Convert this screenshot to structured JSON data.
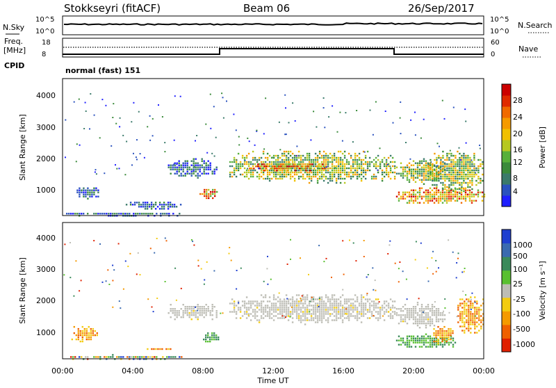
{
  "header": {
    "station": "Stokkseyri (fitACF)",
    "beam": "Beam 06",
    "date": "26/Sep/2017"
  },
  "noise_panel": {
    "left_label": "N.Sky",
    "left_ticks": [
      "10^5",
      "10^0"
    ],
    "right_label": "N.Search",
    "right_ticks": [
      "10^5",
      "10^0"
    ]
  },
  "freq_panel": {
    "left_label_1": "Freq.",
    "left_label_2": "[MHz]",
    "left_ticks": [
      "18",
      "8"
    ],
    "right_label": "Nave",
    "right_ticks": [
      "60",
      "0"
    ]
  },
  "cpid": {
    "label": "CPID",
    "value": "normal (fast) 151"
  },
  "colors": {
    "ground_grey": "#bdbdb5",
    "frame": "#000000"
  },
  "chart_data": [
    {
      "type": "heatmap",
      "title": "Power",
      "ylabel": "Slant Range [km]",
      "yticks": [
        "1000",
        "2000",
        "3000",
        "4000"
      ],
      "ylim": [
        200,
        4500
      ],
      "xlim": [
        0,
        24
      ],
      "colorbar": {
        "label": "Power [dB]",
        "ticks": [
          "4",
          "8",
          "12",
          "16",
          "20",
          "24",
          "28"
        ],
        "colors": [
          "#1f1fff",
          "#2a52be",
          "#3a7a6a",
          "#3a8a3a",
          "#57b03a",
          "#b6c820",
          "#f0c000",
          "#f59a00",
          "#f06a00",
          "#e02a00",
          "#cc0000"
        ]
      },
      "echo_regions": [
        {
          "t": [
            0.2,
            6.9
          ],
          "r": [
            200,
            350
          ],
          "level": "low"
        },
        {
          "t": [
            0.8,
            2.0
          ],
          "r": [
            750,
            1150
          ],
          "level": "low"
        },
        {
          "t": [
            3.6,
            6.8
          ],
          "r": [
            420,
            700
          ],
          "level": "low"
        },
        {
          "t": [
            6.0,
            8.8
          ],
          "r": [
            1400,
            2000
          ],
          "level": "low"
        },
        {
          "t": [
            7.8,
            8.8
          ],
          "r": [
            700,
            1100
          ],
          "level": "high"
        },
        {
          "t": [
            9.5,
            18.9
          ],
          "r": [
            1200,
            2300
          ],
          "level": "mid"
        },
        {
          "t": [
            10.5,
            15.0
          ],
          "r": [
            1600,
            1900
          ],
          "level": "high"
        },
        {
          "t": [
            19.0,
            21.8
          ],
          "r": [
            1200,
            2000
          ],
          "level": "mid"
        },
        {
          "t": [
            19.0,
            24.0
          ],
          "r": [
            550,
            1150
          ],
          "level": "high"
        },
        {
          "t": [
            20.8,
            24.0
          ],
          "r": [
            900,
            2300
          ],
          "level": "mid"
        }
      ]
    },
    {
      "type": "heatmap",
      "title": "Velocity",
      "ylabel": "Slant Range [km]",
      "xlabel": "Time UT",
      "yticks": [
        "1000",
        "2000",
        "3000",
        "4000"
      ],
      "ylim": [
        200,
        4500
      ],
      "xlim": [
        0,
        24
      ],
      "xticks": [
        "00:00",
        "04:00",
        "08:00",
        "12:00",
        "16:00",
        "20:00",
        "00:00"
      ],
      "colorbar": {
        "label": "Velocity [m s⁻¹]",
        "ticks": [
          "1000",
          "500",
          "100",
          "25",
          "-25",
          "-100",
          "-500",
          "-1000"
        ],
        "colors": [
          "#1f3fd0",
          "#3a6ab0",
          "#3a8a5a",
          "#59c030",
          "#bdbdb5",
          "#f3cc10",
          "#f59a00",
          "#f06000",
          "#e02000"
        ]
      },
      "echo_regions": [
        {
          "t": [
            0.2,
            6.9
          ],
          "r": [
            200,
            350
          ],
          "v": "mixed"
        },
        {
          "t": [
            0.5,
            2.0
          ],
          "r": [
            700,
            1300
          ],
          "v": "negative"
        },
        {
          "t": [
            4.8,
            6.2
          ],
          "r": [
            480,
            600
          ],
          "v": "negative"
        },
        {
          "t": [
            6.0,
            8.8
          ],
          "r": [
            1400,
            2000
          ],
          "v": "ground"
        },
        {
          "t": [
            8.0,
            8.9
          ],
          "r": [
            700,
            1100
          ],
          "v": "positive"
        },
        {
          "t": [
            9.5,
            18.9
          ],
          "r": [
            1300,
            2300
          ],
          "v": "ground"
        },
        {
          "t": [
            19.0,
            21.8
          ],
          "r": [
            1200,
            2000
          ],
          "v": "ground"
        },
        {
          "t": [
            19.0,
            22.5
          ],
          "r": [
            550,
            1000
          ],
          "v": "positive"
        },
        {
          "t": [
            21.0,
            22.3
          ],
          "r": [
            700,
            1300
          ],
          "v": "negative"
        },
        {
          "t": [
            22.5,
            24.0
          ],
          "r": [
            900,
            2300
          ],
          "v": "negative"
        }
      ]
    }
  ]
}
